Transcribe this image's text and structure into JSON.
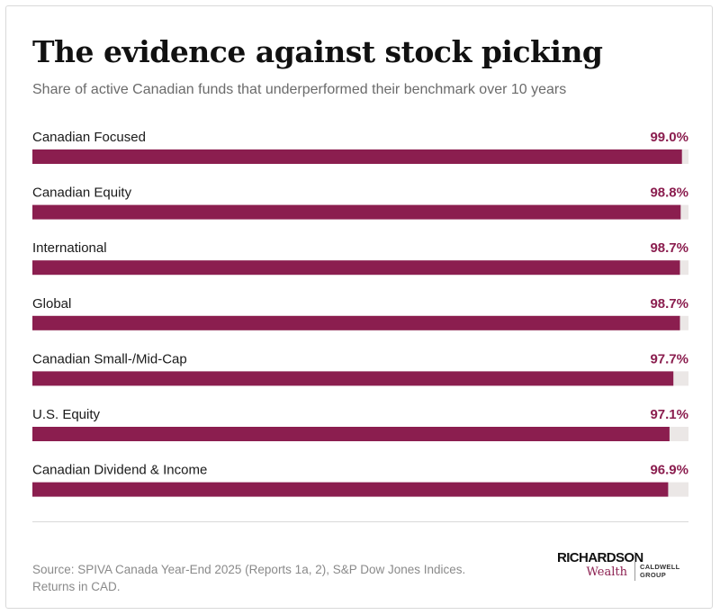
{
  "title": "The evidence against stock picking",
  "subtitle": "Share of active Canadian funds that underperformed their benchmark over 10 years",
  "colors": {
    "bar": "#8b1e4f",
    "track": "#ebe7e6",
    "value_text": "#8b1e4f"
  },
  "chart_data": {
    "type": "bar",
    "orientation": "horizontal",
    "categories": [
      "Canadian Focused",
      "Canadian Equity",
      "International",
      "Global",
      "Canadian Small-/Mid-Cap",
      "U.S. Equity",
      "Canadian Dividend & Income"
    ],
    "values": [
      99.0,
      98.8,
      98.7,
      98.7,
      97.7,
      97.1,
      96.9
    ],
    "value_labels": [
      "99.0%",
      "98.8%",
      "98.7%",
      "98.7%",
      "97.7%",
      "97.1%",
      "96.9%"
    ],
    "xlim": [
      0,
      100
    ],
    "unit": "%",
    "title": "The evidence against stock picking",
    "subtitle": "Share of active Canadian funds that underperformed their benchmark over 10 years",
    "grid": false,
    "legend": "none"
  },
  "source": "Source: SPIVA Canada Year-End 2025 (Reports 1a, 2), S&P Dow Jones Indices. Returns in CAD.",
  "logo": {
    "main": "RICHARDSON",
    "sub": "Wealth",
    "side": "CALDWELL GROUP"
  }
}
